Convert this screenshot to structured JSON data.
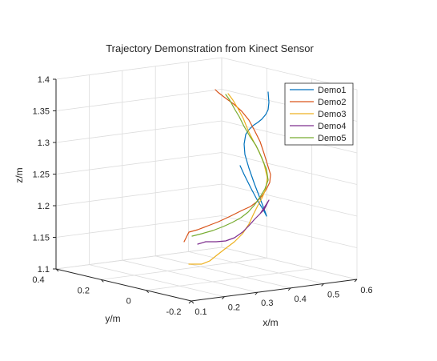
{
  "chart_data": {
    "type": "line",
    "projection": "3d",
    "title": "Trajectory Demonstration from Kinect Sensor",
    "xlabel": "x/m",
    "ylabel": "y/m",
    "zlabel": "z/m",
    "xlim": [
      0.1,
      0.6
    ],
    "ylim": [
      -0.2,
      0.4
    ],
    "zlim": [
      1.1,
      1.4
    ],
    "xticks": [
      "0.1",
      "0.2",
      "0.3",
      "0.4",
      "0.5",
      "0.6"
    ],
    "yticks": [
      "-0.2",
      "0",
      "0.2",
      "0.4"
    ],
    "zticks": [
      "1.1",
      "1.15",
      "1.2",
      "1.25",
      "1.3",
      "1.35",
      "1.4"
    ],
    "grid": true,
    "legend_position": "top-right",
    "series": [
      {
        "name": "Demo1",
        "color": "#0072BD",
        "points": [
          [
            300,
            207
          ],
          [
            305,
            218
          ],
          [
            314,
            236
          ],
          [
            322,
            251
          ],
          [
            329,
            262
          ],
          [
            333,
            270
          ],
          [
            331,
            264
          ],
          [
            325,
            248
          ],
          [
            318,
            230
          ],
          [
            311,
            210
          ],
          [
            306,
            193
          ],
          [
            305,
            180
          ],
          [
            307,
            168
          ],
          [
            311,
            162
          ],
          [
            316,
            157
          ],
          [
            322,
            153
          ],
          [
            327,
            149
          ],
          [
            332,
            143
          ],
          [
            335,
            137
          ],
          [
            336,
            128
          ],
          [
            335,
            115
          ]
        ]
      },
      {
        "name": "Demo2",
        "color": "#D95319",
        "points": [
          [
            230,
            302
          ],
          [
            236,
            290
          ],
          [
            247,
            287
          ],
          [
            260,
            282
          ],
          [
            273,
            277
          ],
          [
            288,
            270
          ],
          [
            302,
            263
          ],
          [
            313,
            258
          ],
          [
            321,
            252
          ],
          [
            328,
            244
          ],
          [
            333,
            236
          ],
          [
            337,
            228
          ],
          [
            338,
            218
          ],
          [
            334,
            205
          ],
          [
            330,
            192
          ],
          [
            325,
            177
          ],
          [
            318,
            163
          ],
          [
            311,
            150
          ],
          [
            302,
            139
          ],
          [
            292,
            130
          ],
          [
            281,
            122
          ],
          [
            272,
            115
          ],
          [
            269,
            112
          ]
        ]
      },
      {
        "name": "Demo3",
        "color": "#EDB120",
        "points": [
          [
            236,
            330
          ],
          [
            242,
            330
          ],
          [
            252,
            330
          ],
          [
            262,
            326
          ],
          [
            272,
            318
          ],
          [
            281,
            311
          ],
          [
            293,
            302
          ],
          [
            303,
            292
          ],
          [
            311,
            280
          ],
          [
            317,
            267
          ],
          [
            322,
            257
          ],
          [
            328,
            246
          ],
          [
            332,
            236
          ],
          [
            334,
            222
          ],
          [
            330,
            205
          ],
          [
            324,
            190
          ],
          [
            317,
            177
          ],
          [
            310,
            163
          ],
          [
            304,
            148
          ],
          [
            297,
            135
          ],
          [
            291,
            125
          ],
          [
            285,
            117
          ]
        ]
      },
      {
        "name": "Demo4",
        "color": "#7E2F8E",
        "points": [
          [
            247,
            305
          ],
          [
            257,
            302
          ],
          [
            270,
            302
          ],
          [
            282,
            301
          ],
          [
            293,
            297
          ],
          [
            303,
            290
          ],
          [
            311,
            282
          ],
          [
            318,
            274
          ],
          [
            325,
            267
          ],
          [
            331,
            258
          ],
          [
            336,
            250
          ],
          [
            330,
            262
          ],
          [
            322,
            270
          ]
        ]
      },
      {
        "name": "Demo5",
        "color": "#77AC30",
        "points": [
          [
            240,
            295
          ],
          [
            252,
            292
          ],
          [
            266,
            288
          ],
          [
            279,
            283
          ],
          [
            290,
            278
          ],
          [
            301,
            272
          ],
          [
            310,
            265
          ],
          [
            318,
            256
          ],
          [
            325,
            246
          ],
          [
            331,
            236
          ],
          [
            335,
            225
          ],
          [
            333,
            212
          ],
          [
            327,
            197
          ],
          [
            320,
            182
          ],
          [
            312,
            170
          ],
          [
            305,
            158
          ],
          [
            299,
            146
          ],
          [
            293,
            136
          ],
          [
            287,
            125
          ],
          [
            282,
            118
          ]
        ]
      }
    ]
  }
}
